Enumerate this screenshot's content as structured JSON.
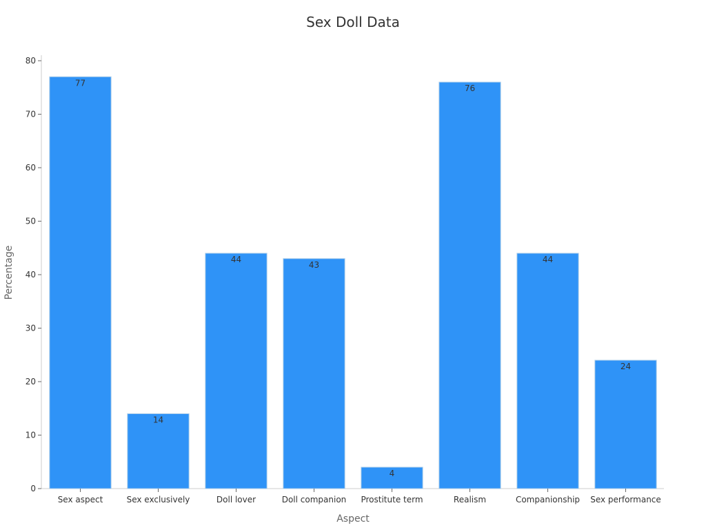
{
  "chart_data": {
    "type": "bar",
    "title": "Sex Doll Data",
    "xlabel": "Aspect",
    "ylabel": "Percentage",
    "categories": [
      "Sex aspect",
      "Sex exclusively",
      "Doll lover",
      "Doll companion",
      "Prostitute term",
      "Realism",
      "Companionship",
      "Sex performance"
    ],
    "values": [
      77,
      14,
      44,
      43,
      4,
      76,
      44,
      24
    ],
    "ylim": [
      0,
      80
    ],
    "yticks": [
      0,
      10,
      20,
      30,
      40,
      50,
      60,
      70,
      80
    ],
    "grid": false,
    "legend": "none",
    "bar_color": "#2f93f7"
  }
}
